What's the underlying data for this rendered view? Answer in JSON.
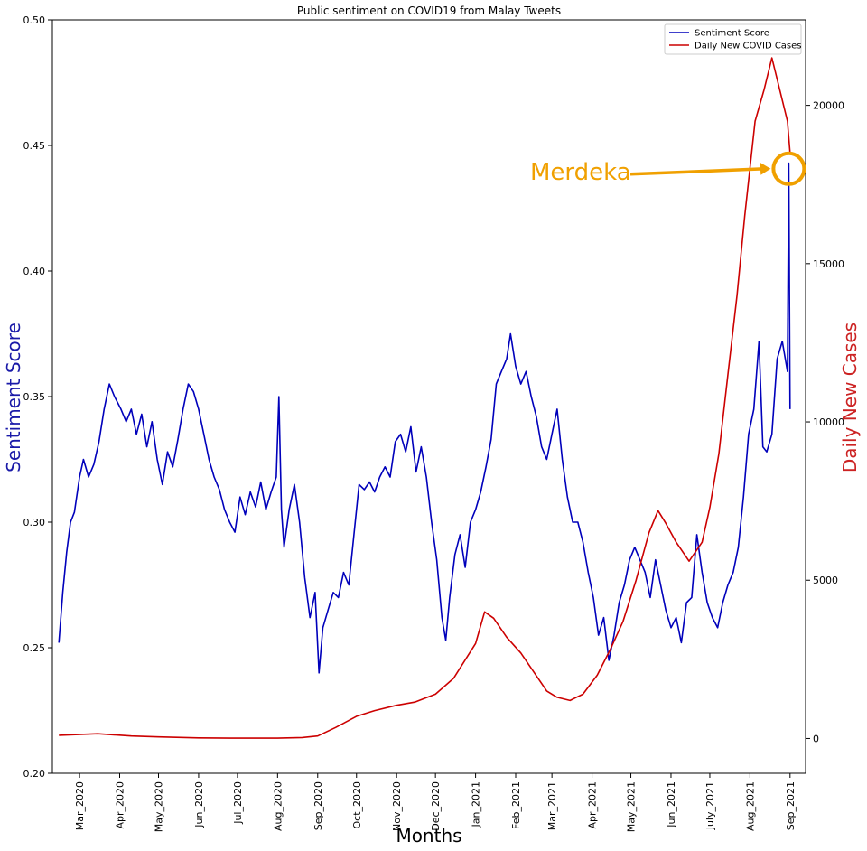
{
  "chart_data": {
    "type": "line",
    "title": "Public sentiment on COVID19 from Malay Tweets",
    "xlabel": "Months",
    "ylabel_left": "Sentiment Score",
    "ylabel_right": "Daily New Cases",
    "x_ticks": [
      "Mar_2020",
      "Apr_2020",
      "May_2020",
      "Jun_2020",
      "Jul_2020",
      "Aug_2020",
      "Sep_2020",
      "Oct_2020",
      "Nov_2020",
      "Dec_2020",
      "Jan_2021",
      "Feb_2021",
      "Mar_2021",
      "Apr_2021",
      "May_2021",
      "Jun_2021",
      "July_2021",
      "Aug_2021",
      "Sep_2021"
    ],
    "x_start": "2020-02-09",
    "x_end": "2021-09-13",
    "y_left_lim": [
      0.2,
      0.5
    ],
    "y_left_ticks": [
      "0.20",
      "0.25",
      "0.30",
      "0.35",
      "0.40",
      "0.45",
      "0.50"
    ],
    "y_right_lim": [
      -1100,
      22700
    ],
    "y_right_ticks": [
      "0",
      "5000",
      "10000",
      "15000",
      "20000"
    ],
    "legend_position": "top-right",
    "series": [
      {
        "name": "Sentiment Score",
        "axis": "left",
        "color": "#0000bb",
        "points": [
          [
            "2020-02-14",
            0.252
          ],
          [
            "2020-02-17",
            0.272
          ],
          [
            "2020-02-20",
            0.288
          ],
          [
            "2020-02-23",
            0.3
          ],
          [
            "2020-02-26",
            0.304
          ],
          [
            "2020-03-01",
            0.318
          ],
          [
            "2020-03-04",
            0.325
          ],
          [
            "2020-03-08",
            0.318
          ],
          [
            "2020-03-12",
            0.323
          ],
          [
            "2020-03-16",
            0.332
          ],
          [
            "2020-03-20",
            0.345
          ],
          [
            "2020-03-24",
            0.355
          ],
          [
            "2020-03-28",
            0.35
          ],
          [
            "2020-04-02",
            0.345
          ],
          [
            "2020-04-06",
            0.34
          ],
          [
            "2020-04-10",
            0.345
          ],
          [
            "2020-04-14",
            0.335
          ],
          [
            "2020-04-18",
            0.343
          ],
          [
            "2020-04-22",
            0.33
          ],
          [
            "2020-04-26",
            0.34
          ],
          [
            "2020-04-30",
            0.325
          ],
          [
            "2020-05-04",
            0.315
          ],
          [
            "2020-05-08",
            0.328
          ],
          [
            "2020-05-12",
            0.322
          ],
          [
            "2020-05-16",
            0.333
          ],
          [
            "2020-05-20",
            0.345
          ],
          [
            "2020-05-24",
            0.355
          ],
          [
            "2020-05-28",
            0.352
          ],
          [
            "2020-06-01",
            0.345
          ],
          [
            "2020-06-05",
            0.335
          ],
          [
            "2020-06-09",
            0.325
          ],
          [
            "2020-06-13",
            0.318
          ],
          [
            "2020-06-17",
            0.313
          ],
          [
            "2020-06-21",
            0.305
          ],
          [
            "2020-06-25",
            0.3
          ],
          [
            "2020-06-29",
            0.296
          ],
          [
            "2020-07-03",
            0.31
          ],
          [
            "2020-07-07",
            0.303
          ],
          [
            "2020-07-11",
            0.312
          ],
          [
            "2020-07-15",
            0.306
          ],
          [
            "2020-07-19",
            0.316
          ],
          [
            "2020-07-23",
            0.305
          ],
          [
            "2020-07-27",
            0.312
          ],
          [
            "2020-07-31",
            0.318
          ],
          [
            "2020-08-02",
            0.35
          ],
          [
            "2020-08-04",
            0.305
          ],
          [
            "2020-08-06",
            0.29
          ],
          [
            "2020-08-10",
            0.305
          ],
          [
            "2020-08-14",
            0.315
          ],
          [
            "2020-08-18",
            0.3
          ],
          [
            "2020-08-22",
            0.278
          ],
          [
            "2020-08-26",
            0.262
          ],
          [
            "2020-08-30",
            0.272
          ],
          [
            "2020-09-02",
            0.24
          ],
          [
            "2020-09-05",
            0.258
          ],
          [
            "2020-09-09",
            0.265
          ],
          [
            "2020-09-13",
            0.272
          ],
          [
            "2020-09-17",
            0.27
          ],
          [
            "2020-09-21",
            0.28
          ],
          [
            "2020-09-25",
            0.275
          ],
          [
            "2020-09-29",
            0.295
          ],
          [
            "2020-10-03",
            0.315
          ],
          [
            "2020-10-07",
            0.313
          ],
          [
            "2020-10-11",
            0.316
          ],
          [
            "2020-10-15",
            0.312
          ],
          [
            "2020-10-19",
            0.318
          ],
          [
            "2020-10-23",
            0.322
          ],
          [
            "2020-10-27",
            0.318
          ],
          [
            "2020-10-31",
            0.332
          ],
          [
            "2020-11-04",
            0.335
          ],
          [
            "2020-11-08",
            0.328
          ],
          [
            "2020-11-12",
            0.338
          ],
          [
            "2020-11-16",
            0.32
          ],
          [
            "2020-11-20",
            0.33
          ],
          [
            "2020-11-24",
            0.318
          ],
          [
            "2020-11-28",
            0.3
          ],
          [
            "2020-12-02",
            0.285
          ],
          [
            "2020-12-06",
            0.262
          ],
          [
            "2020-12-09",
            0.253
          ],
          [
            "2020-12-12",
            0.27
          ],
          [
            "2020-12-16",
            0.287
          ],
          [
            "2020-12-20",
            0.295
          ],
          [
            "2020-12-24",
            0.282
          ],
          [
            "2020-12-28",
            0.3
          ],
          [
            "2021-01-01",
            0.305
          ],
          [
            "2021-01-05",
            0.312
          ],
          [
            "2021-01-09",
            0.322
          ],
          [
            "2021-01-13",
            0.333
          ],
          [
            "2021-01-17",
            0.355
          ],
          [
            "2021-01-21",
            0.36
          ],
          [
            "2021-01-25",
            0.365
          ],
          [
            "2021-01-28",
            0.375
          ],
          [
            "2021-02-01",
            0.362
          ],
          [
            "2021-02-05",
            0.355
          ],
          [
            "2021-02-09",
            0.36
          ],
          [
            "2021-02-13",
            0.35
          ],
          [
            "2021-02-17",
            0.342
          ],
          [
            "2021-02-21",
            0.33
          ],
          [
            "2021-02-25",
            0.325
          ],
          [
            "2021-03-01",
            0.335
          ],
          [
            "2021-03-05",
            0.345
          ],
          [
            "2021-03-09",
            0.325
          ],
          [
            "2021-03-13",
            0.31
          ],
          [
            "2021-03-17",
            0.3
          ],
          [
            "2021-03-21",
            0.3
          ],
          [
            "2021-03-25",
            0.292
          ],
          [
            "2021-03-29",
            0.28
          ],
          [
            "2021-04-02",
            0.27
          ],
          [
            "2021-04-06",
            0.255
          ],
          [
            "2021-04-10",
            0.262
          ],
          [
            "2021-04-14",
            0.245
          ],
          [
            "2021-04-18",
            0.255
          ],
          [
            "2021-04-22",
            0.268
          ],
          [
            "2021-04-26",
            0.275
          ],
          [
            "2021-04-30",
            0.285
          ],
          [
            "2021-05-04",
            0.29
          ],
          [
            "2021-05-08",
            0.285
          ],
          [
            "2021-05-12",
            0.28
          ],
          [
            "2021-05-16",
            0.27
          ],
          [
            "2021-05-20",
            0.285
          ],
          [
            "2021-05-24",
            0.275
          ],
          [
            "2021-05-28",
            0.265
          ],
          [
            "2021-06-01",
            0.258
          ],
          [
            "2021-06-05",
            0.262
          ],
          [
            "2021-06-09",
            0.252
          ],
          [
            "2021-06-13",
            0.268
          ],
          [
            "2021-06-17",
            0.27
          ],
          [
            "2021-06-21",
            0.295
          ],
          [
            "2021-06-25",
            0.28
          ],
          [
            "2021-06-29",
            0.268
          ],
          [
            "2021-07-03",
            0.262
          ],
          [
            "2021-07-07",
            0.258
          ],
          [
            "2021-07-11",
            0.268
          ],
          [
            "2021-07-15",
            0.275
          ],
          [
            "2021-07-19",
            0.28
          ],
          [
            "2021-07-23",
            0.29
          ],
          [
            "2021-07-27",
            0.31
          ],
          [
            "2021-07-31",
            0.335
          ],
          [
            "2021-08-04",
            0.345
          ],
          [
            "2021-08-08",
            0.372
          ],
          [
            "2021-08-11",
            0.33
          ],
          [
            "2021-08-14",
            0.328
          ],
          [
            "2021-08-18",
            0.335
          ],
          [
            "2021-08-22",
            0.365
          ],
          [
            "2021-08-26",
            0.372
          ],
          [
            "2021-08-30",
            0.36
          ],
          [
            "2021-08-31",
            0.443
          ],
          [
            "2021-09-01",
            0.345
          ]
        ]
      },
      {
        "name": "Daily New COVID Cases",
        "axis": "right",
        "color": "#cc0000",
        "points": [
          [
            "2020-02-14",
            100
          ],
          [
            "2020-03-15",
            150
          ],
          [
            "2020-04-10",
            80
          ],
          [
            "2020-05-01",
            50
          ],
          [
            "2020-06-01",
            20
          ],
          [
            "2020-07-01",
            10
          ],
          [
            "2020-08-01",
            10
          ],
          [
            "2020-08-20",
            30
          ],
          [
            "2020-09-01",
            80
          ],
          [
            "2020-09-15",
            350
          ],
          [
            "2020-10-01",
            700
          ],
          [
            "2020-10-15",
            880
          ],
          [
            "2020-11-01",
            1050
          ],
          [
            "2020-11-15",
            1150
          ],
          [
            "2020-12-01",
            1400
          ],
          [
            "2020-12-15",
            1900
          ],
          [
            "2021-01-01",
            3000
          ],
          [
            "2021-01-08",
            4000
          ],
          [
            "2021-01-15",
            3800
          ],
          [
            "2021-01-25",
            3200
          ],
          [
            "2021-02-05",
            2700
          ],
          [
            "2021-02-15",
            2100
          ],
          [
            "2021-02-25",
            1500
          ],
          [
            "2021-03-05",
            1300
          ],
          [
            "2021-03-15",
            1200
          ],
          [
            "2021-03-25",
            1400
          ],
          [
            "2021-04-05",
            2000
          ],
          [
            "2021-04-15",
            2800
          ],
          [
            "2021-04-25",
            3700
          ],
          [
            "2021-05-05",
            5000
          ],
          [
            "2021-05-15",
            6500
          ],
          [
            "2021-05-22",
            7200
          ],
          [
            "2021-05-28",
            6800
          ],
          [
            "2021-06-05",
            6200
          ],
          [
            "2021-06-15",
            5600
          ],
          [
            "2021-06-25",
            6200
          ],
          [
            "2021-07-01",
            7300
          ],
          [
            "2021-07-08",
            9000
          ],
          [
            "2021-07-15",
            11500
          ],
          [
            "2021-07-22",
            14000
          ],
          [
            "2021-07-28",
            16500
          ],
          [
            "2021-08-05",
            19500
          ],
          [
            "2021-08-12",
            20500
          ],
          [
            "2021-08-18",
            21500
          ],
          [
            "2021-08-24",
            20500
          ],
          [
            "2021-08-30",
            19500
          ],
          [
            "2021-09-01",
            18500
          ]
        ]
      }
    ],
    "annotations": [
      {
        "text": "Merdeka",
        "color": "#f0a000",
        "x": "2021-08-31",
        "y": 0.44
      }
    ]
  }
}
